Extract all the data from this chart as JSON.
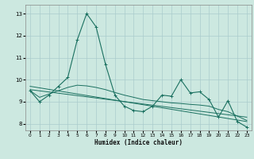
{
  "xlabel": "Humidex (Indice chaleur)",
  "xlim": [
    -0.5,
    23.5
  ],
  "ylim": [
    7.7,
    13.4
  ],
  "yticks": [
    8,
    9,
    10,
    11,
    12,
    13
  ],
  "xticks": [
    0,
    1,
    2,
    3,
    4,
    5,
    6,
    7,
    8,
    9,
    10,
    11,
    12,
    13,
    14,
    15,
    16,
    17,
    18,
    19,
    20,
    21,
    22,
    23
  ],
  "bg_color": "#cce8e0",
  "grid_color": "#aacccc",
  "line_color": "#1a7060",
  "curve1_x": [
    0,
    1,
    2,
    3,
    4,
    5,
    6,
    7,
    8,
    9,
    10,
    11,
    12,
    13,
    14,
    15,
    16,
    17,
    18,
    19,
    20,
    21,
    22,
    23
  ],
  "curve1_y": [
    9.5,
    9.0,
    9.3,
    9.7,
    10.1,
    11.8,
    13.0,
    12.4,
    10.7,
    9.3,
    8.8,
    8.6,
    8.55,
    8.8,
    9.3,
    9.25,
    10.0,
    9.4,
    9.45,
    9.1,
    8.3,
    9.05,
    8.1,
    7.85
  ],
  "trend1_x": [
    0,
    23
  ],
  "trend1_y": [
    9.7,
    8.1
  ],
  "trend2_x": [
    0,
    23
  ],
  "trend2_y": [
    9.55,
    8.3
  ],
  "smooth_x": [
    0,
    1,
    2,
    3,
    4,
    5,
    6,
    7,
    8,
    9,
    10,
    11,
    12,
    13,
    14,
    15,
    16,
    17,
    18,
    19,
    20,
    21,
    22,
    23
  ],
  "smooth_y": [
    9.5,
    9.2,
    9.35,
    9.5,
    9.65,
    9.75,
    9.72,
    9.65,
    9.55,
    9.42,
    9.3,
    9.2,
    9.1,
    9.05,
    9.0,
    8.95,
    8.92,
    8.88,
    8.85,
    8.8,
    8.65,
    8.55,
    8.35,
    8.15
  ]
}
